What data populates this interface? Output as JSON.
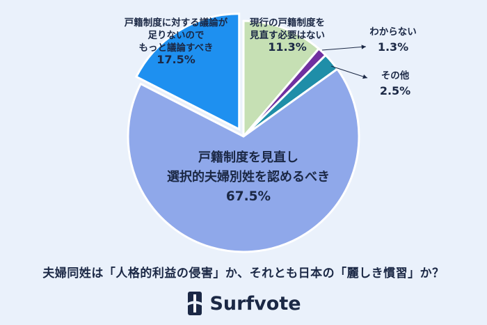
{
  "chart_data": {
    "type": "pie",
    "title": "夫婦同姓は「人格的利益の侵害」か、それとも日本の「麗しき慣習」か？",
    "slices": [
      {
        "lines": [
          "現行の戸籍制度を",
          "見直す必要はない"
        ],
        "pct": "11.3%",
        "value": 11.3,
        "color": "#c6e0b4"
      },
      {
        "lines": [
          "わからない"
        ],
        "pct": "1.3%",
        "value": 1.3,
        "color": "#7030a0"
      },
      {
        "lines": [
          "その他"
        ],
        "pct": "2.5%",
        "value": 2.5,
        "color": "#1f8ea8"
      },
      {
        "lines": [
          "戸籍制度を見直し",
          "選択的夫婦別姓を認めるべき"
        ],
        "pct": "67.5%",
        "value": 67.5,
        "color": "#8fa8ea"
      },
      {
        "lines": [
          "戸籍制度に対する議論が",
          "足りないので",
          "もっと議論すべき"
        ],
        "pct": "17.5%",
        "value": 17.5,
        "color": "#1e90f0"
      }
    ]
  },
  "brand": {
    "name": "Surfvote"
  }
}
